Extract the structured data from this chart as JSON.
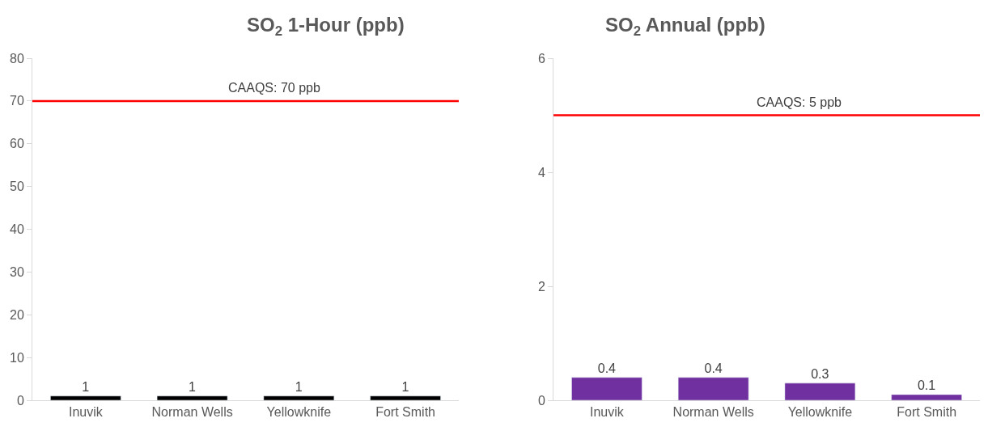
{
  "chart_data": [
    {
      "type": "bar",
      "title": "SO$_{2}$ 1-Hour (ppb)",
      "categories": [
        "Inuvik",
        "Norman Wells",
        "Yellowknife",
        "Fort Smith"
      ],
      "values": [
        1,
        1,
        1,
        1
      ],
      "color": "#000000",
      "ylim": [
        0,
        80
      ],
      "yticks": [
        0,
        10,
        20,
        30,
        40,
        50,
        60,
        70,
        80
      ],
      "data_labels": true,
      "ref_lines": [
        {
          "axis": "y",
          "value": 70,
          "label": "CAAQS: 70 ppb",
          "color": "#ff0000"
        }
      ]
    },
    {
      "type": "bar",
      "title": "SO$_{2}$ Annual (ppb)",
      "categories": [
        "Inuvik",
        "Norman Wells",
        "Yellowknife",
        "Fort Smith"
      ],
      "values": [
        0.4,
        0.4,
        0.3,
        0.1
      ],
      "color": "#7030a0",
      "ylim": [
        0,
        6
      ],
      "yticks": [
        0,
        2,
        4,
        6
      ],
      "data_labels": true,
      "ref_lines": [
        {
          "axis": "y",
          "value": 5,
          "label": "CAAQS: 5 ppb",
          "color": "#ff0000"
        }
      ]
    }
  ]
}
